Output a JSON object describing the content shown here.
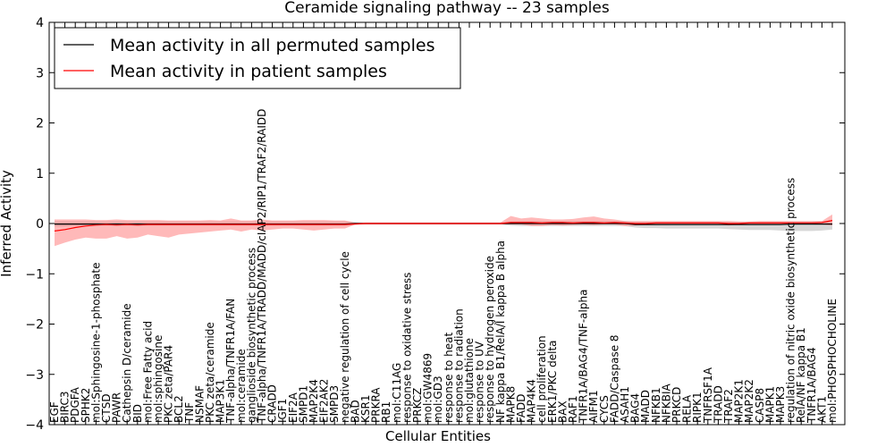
{
  "chart_data": {
    "type": "line",
    "title": "Ceramide signaling pathway -- 23 samples",
    "xlabel": "Cellular Entities",
    "ylabel": "Inferred Activity",
    "ylim": [
      -4,
      4
    ],
    "yticks": [
      "−4",
      "−3",
      "−2",
      "−1",
      "0",
      "1",
      "2",
      "3",
      "4"
    ],
    "grid": false,
    "legend_position": "top-left",
    "categories": [
      "EGF",
      "BIRC3",
      "PDGFA",
      "SPHK2",
      "mol:Sphingosine-1-phosphate",
      "CTSD",
      "PAWR",
      "Cathepsin D/ceramide",
      "BID",
      "mol:Free Fatty acid",
      "mol:sphingosine",
      "PKC zeta/PAR4",
      "BCL2",
      "TNF",
      "NSMAF",
      "PKC zeta/ceramide",
      "MAP3K1",
      "TNF-alpha/TNFR1A/FAN",
      "mol:ceramide",
      "ganglioside biosynthetic process",
      "TNF-alpha/TNFR1A/TRADD/MADD/cIAP2/RIP1/TRAF2/RAIDD",
      "CRADD",
      "IGF1",
      "EIF2A",
      "SMPD1",
      "MAP2K4",
      "EIF2AK2",
      "SMPD3",
      "negative regulation of cell cycle",
      "BAD",
      "KSR1",
      "PRKRA",
      "RB1",
      "mol:C11AG",
      "response to oxidative stress",
      "PRKCZ",
      "mol:GW4869",
      "mol:GD3",
      "response to heat",
      "response to radiation",
      "mol:glutathione",
      "response to UV",
      "response to hydrogen peroxide",
      "NF kappa B1/RelA/I kappa B alpha",
      "MAPK8",
      "FADD",
      "MAP4K4",
      "cell proliferation",
      "ERK1/PKC delta",
      "BAX",
      "RAF1",
      "TNFR1A/BAG4/TNF-alpha",
      "AIFM1",
      "CYCS",
      "FADD/Caspase 8",
      "ASAH1",
      "BAG4",
      "MADD",
      "NFKB1",
      "NFKBIA",
      "PRKCD",
      "RELA",
      "RIPK1",
      "TNFRSF1A",
      "TRADD",
      "TRAF2",
      "MAP2K1",
      "MAP2K2",
      "CASP8",
      "MAPK1",
      "MAPK3",
      "regulation of nitric oxide biosynthetic process",
      "RelA/NF kappa B1",
      "TNFR1A/BAG4",
      "AKT1",
      "mol:PHOSPHOCHOLINE"
    ],
    "series": [
      {
        "name": "Mean activity in all permuted samples",
        "color": "#000000",
        "values": [
          -0.01,
          -0.01,
          -0.01,
          -0.01,
          -0.01,
          -0.01,
          -0.01,
          -0.01,
          -0.01,
          -0.01,
          -0.01,
          -0.01,
          -0.01,
          -0.01,
          -0.01,
          -0.01,
          -0.01,
          -0.01,
          -0.01,
          -0.01,
          -0.01,
          -0.01,
          -0.01,
          -0.01,
          -0.01,
          -0.01,
          -0.01,
          -0.01,
          -0.01,
          0.0,
          0.0,
          0.0,
          0.0,
          0.0,
          0.0,
          0.0,
          0.0,
          0.0,
          0.0,
          0.0,
          0.0,
          0.0,
          0.0,
          0.0,
          0.0,
          0.0,
          0.0,
          0.0,
          0.0,
          0.0,
          0.0,
          0.0,
          0.0,
          0.0,
          0.0,
          0.0,
          -0.02,
          -0.02,
          -0.02,
          -0.02,
          -0.02,
          -0.02,
          -0.02,
          -0.02,
          -0.02,
          -0.02,
          -0.02,
          -0.02,
          -0.02,
          -0.02,
          -0.02,
          -0.01,
          -0.01,
          -0.01,
          -0.01,
          -0.01
        ],
        "band": {
          "color": "#b0b0b0",
          "lower": [
            -0.06,
            -0.06,
            -0.05,
            -0.05,
            -0.05,
            -0.05,
            -0.05,
            -0.05,
            -0.05,
            -0.05,
            -0.05,
            -0.05,
            -0.05,
            -0.05,
            -0.05,
            -0.05,
            -0.05,
            -0.05,
            -0.05,
            -0.05,
            -0.05,
            -0.05,
            -0.05,
            -0.05,
            -0.05,
            -0.05,
            -0.05,
            -0.05,
            -0.05,
            -0.02,
            -0.02,
            -0.02,
            -0.02,
            -0.02,
            -0.02,
            -0.02,
            -0.02,
            -0.02,
            -0.02,
            -0.02,
            -0.02,
            -0.02,
            -0.02,
            -0.02,
            -0.04,
            -0.05,
            -0.05,
            -0.05,
            -0.05,
            -0.05,
            -0.05,
            -0.05,
            -0.05,
            -0.05,
            -0.05,
            -0.05,
            -0.08,
            -0.09,
            -0.09,
            -0.1,
            -0.1,
            -0.1,
            -0.1,
            -0.1,
            -0.1,
            -0.11,
            -0.12,
            -0.13,
            -0.13,
            -0.13,
            -0.14,
            -0.15,
            -0.15,
            -0.15,
            -0.14,
            -0.12
          ],
          "upper": [
            0.04,
            0.04,
            0.04,
            0.04,
            0.04,
            0.04,
            0.04,
            0.04,
            0.04,
            0.04,
            0.04,
            0.04,
            0.04,
            0.04,
            0.04,
            0.04,
            0.04,
            0.04,
            0.04,
            0.04,
            0.04,
            0.04,
            0.04,
            0.04,
            0.04,
            0.04,
            0.04,
            0.04,
            0.04,
            0.02,
            0.02,
            0.02,
            0.02,
            0.02,
            0.02,
            0.02,
            0.02,
            0.02,
            0.02,
            0.02,
            0.02,
            0.02,
            0.02,
            0.02,
            0.04,
            0.05,
            0.05,
            0.05,
            0.05,
            0.05,
            0.05,
            0.05,
            0.05,
            0.05,
            0.05,
            0.05,
            0.03,
            0.03,
            0.03,
            0.03,
            0.03,
            0.03,
            0.03,
            0.03,
            0.03,
            0.03,
            0.03,
            0.03,
            0.03,
            0.03,
            0.03,
            0.03,
            0.03,
            0.03,
            0.03,
            0.03
          ]
        }
      },
      {
        "name": "Mean activity in patient samples",
        "color": "#ff0000",
        "values": [
          -0.15,
          -0.12,
          -0.08,
          -0.05,
          -0.03,
          -0.02,
          -0.03,
          -0.02,
          -0.03,
          -0.02,
          -0.02,
          -0.02,
          -0.02,
          -0.02,
          -0.02,
          -0.02,
          -0.02,
          -0.02,
          -0.02,
          -0.02,
          -0.02,
          -0.02,
          -0.02,
          -0.02,
          -0.02,
          -0.02,
          -0.02,
          -0.02,
          -0.02,
          -0.01,
          0.0,
          0.0,
          0.0,
          0.0,
          0.0,
          0.0,
          0.0,
          0.0,
          0.0,
          0.0,
          0.0,
          0.0,
          0.0,
          0.0,
          0.02,
          0.02,
          0.02,
          0.01,
          0.02,
          0.02,
          0.01,
          0.02,
          0.02,
          0.01,
          0.02,
          0.01,
          0.0,
          0.0,
          0.01,
          0.01,
          0.01,
          0.01,
          0.01,
          0.01,
          0.01,
          0.0,
          0.0,
          0.01,
          0.01,
          0.01,
          0.01,
          0.01,
          0.01,
          0.01,
          0.02,
          0.06
        ],
        "band": {
          "color": "#ff8080",
          "lower": [
            -0.45,
            -0.38,
            -0.32,
            -0.28,
            -0.3,
            -0.3,
            -0.25,
            -0.3,
            -0.28,
            -0.22,
            -0.25,
            -0.28,
            -0.22,
            -0.2,
            -0.18,
            -0.16,
            -0.14,
            -0.12,
            -0.16,
            -0.12,
            -0.14,
            -0.12,
            -0.1,
            -0.1,
            -0.12,
            -0.14,
            -0.12,
            -0.1,
            -0.1,
            -0.02,
            -0.02,
            -0.02,
            -0.02,
            -0.02,
            -0.02,
            -0.02,
            -0.02,
            -0.02,
            -0.02,
            -0.02,
            -0.02,
            -0.02,
            -0.02,
            -0.02,
            -0.02,
            -0.02,
            -0.05,
            -0.05,
            -0.03,
            -0.04,
            -0.03,
            -0.02,
            -0.03,
            -0.02,
            -0.02,
            -0.05,
            -0.04,
            -0.03,
            -0.03,
            -0.03,
            -0.02,
            -0.02,
            -0.02,
            -0.02,
            -0.02,
            -0.04,
            -0.02,
            -0.02,
            -0.02,
            -0.02,
            -0.02,
            -0.02,
            -0.02,
            -0.02,
            -0.02,
            -0.04
          ],
          "upper": [
            0.08,
            0.08,
            0.08,
            0.08,
            0.07,
            0.07,
            0.08,
            0.07,
            0.07,
            0.07,
            0.07,
            0.06,
            0.06,
            0.06,
            0.06,
            0.07,
            0.06,
            0.1,
            0.06,
            0.06,
            0.08,
            0.06,
            0.06,
            0.06,
            0.07,
            0.07,
            0.07,
            0.06,
            0.06,
            0.02,
            0.02,
            0.02,
            0.02,
            0.02,
            0.02,
            0.02,
            0.02,
            0.02,
            0.02,
            0.02,
            0.02,
            0.02,
            0.02,
            0.02,
            0.15,
            0.1,
            0.12,
            0.1,
            0.08,
            0.08,
            0.09,
            0.12,
            0.14,
            0.1,
            0.08,
            0.05,
            0.05,
            0.05,
            0.05,
            0.05,
            0.05,
            0.05,
            0.05,
            0.05,
            0.05,
            0.05,
            0.04,
            0.04,
            0.05,
            0.05,
            0.05,
            0.05,
            0.05,
            0.05,
            0.05,
            0.18
          ]
        }
      }
    ]
  }
}
